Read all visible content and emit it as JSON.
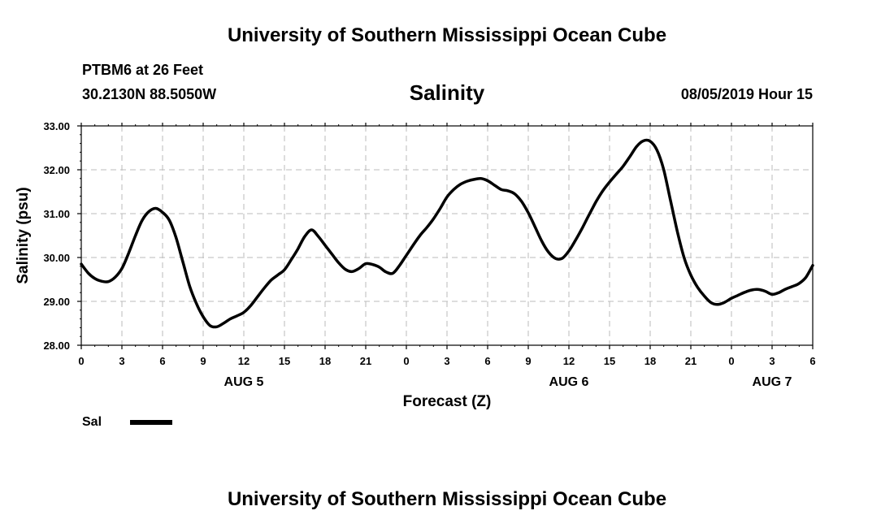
{
  "header": {
    "title_top": "University of Southern Mississippi Ocean Cube",
    "station": "PTBM6 at 26 Feet",
    "coords": "30.2130N 88.5050W",
    "chart_title": "Salinity",
    "datetime": "08/05/2019 Hour 15",
    "title_bottom": "University of Southern Mississippi Ocean Cube"
  },
  "chart_data": {
    "type": "line",
    "title": "Salinity",
    "xlabel": "Forecast (Z)",
    "ylabel": "Salinity (psu)",
    "ylim": [
      28,
      33
    ],
    "xlim": [
      0,
      54
    ],
    "y_ticks": [
      "28.00",
      "29.00",
      "30.00",
      "31.00",
      "32.00",
      "33.00"
    ],
    "x_tick_labels": [
      "0",
      "3",
      "6",
      "9",
      "12",
      "15",
      "18",
      "21",
      "0",
      "3",
      "6",
      "9",
      "12",
      "15",
      "18",
      "21",
      "0",
      "3",
      "6"
    ],
    "day_labels": [
      {
        "label": "AUG 5",
        "hour": 12
      },
      {
        "label": "AUG 6",
        "hour": 36
      },
      {
        "label": "AUG 7",
        "hour": 51
      }
    ],
    "grid": true,
    "legend_position": "bottom-left",
    "series": [
      {
        "name": "Sal",
        "color": "#000000",
        "x": [
          0,
          0.5,
          1,
          1.5,
          2,
          2.5,
          3,
          3.5,
          4,
          4.5,
          5,
          5.5,
          6,
          6.5,
          7,
          7.5,
          8,
          8.5,
          9,
          9.5,
          10,
          10.5,
          11,
          11.5,
          12,
          12.5,
          13,
          13.5,
          14,
          14.5,
          15,
          15.5,
          16,
          16.5,
          17,
          17.5,
          18,
          18.5,
          19,
          19.5,
          20,
          20.5,
          21,
          21.5,
          22,
          22.5,
          23,
          23.5,
          24,
          24.5,
          25,
          25.5,
          26,
          26.5,
          27,
          27.5,
          28,
          28.5,
          29,
          29.5,
          30,
          30.5,
          31,
          31.5,
          32,
          32.5,
          33,
          33.5,
          34,
          34.5,
          35,
          35.5,
          36,
          36.5,
          37,
          37.5,
          38,
          38.5,
          39,
          39.5,
          40,
          40.5,
          41,
          41.5,
          42,
          42.5,
          43,
          43.5,
          44,
          44.5,
          45,
          45.5,
          46,
          46.5,
          47,
          47.5,
          48,
          48.5,
          49,
          49.5,
          50,
          50.5,
          51,
          51.5,
          52,
          52.5,
          53,
          53.5,
          54
        ],
        "values": [
          29.85,
          29.65,
          29.52,
          29.46,
          29.45,
          29.55,
          29.75,
          30.1,
          30.5,
          30.85,
          31.05,
          31.12,
          31.03,
          30.85,
          30.45,
          29.9,
          29.35,
          28.95,
          28.65,
          28.45,
          28.42,
          28.5,
          28.6,
          28.67,
          28.75,
          28.9,
          29.1,
          29.3,
          29.48,
          29.6,
          29.72,
          29.95,
          30.2,
          30.48,
          30.63,
          30.48,
          30.28,
          30.08,
          29.88,
          29.73,
          29.68,
          29.75,
          29.86,
          29.84,
          29.78,
          29.67,
          29.64,
          29.82,
          30.05,
          30.28,
          30.5,
          30.68,
          30.88,
          31.12,
          31.38,
          31.55,
          31.67,
          31.74,
          31.78,
          31.8,
          31.75,
          31.65,
          31.55,
          31.52,
          31.45,
          31.28,
          31.02,
          30.7,
          30.37,
          30.12,
          29.98,
          29.98,
          30.15,
          30.4,
          30.68,
          30.98,
          31.27,
          31.52,
          31.72,
          31.9,
          32.08,
          32.3,
          32.53,
          32.66,
          32.65,
          32.45,
          32.0,
          31.3,
          30.6,
          30.0,
          29.6,
          29.32,
          29.12,
          28.97,
          28.93,
          28.98,
          29.07,
          29.14,
          29.21,
          29.26,
          29.27,
          29.23,
          29.16,
          29.2,
          29.28,
          29.34,
          29.41,
          29.55,
          29.82
        ]
      }
    ]
  }
}
